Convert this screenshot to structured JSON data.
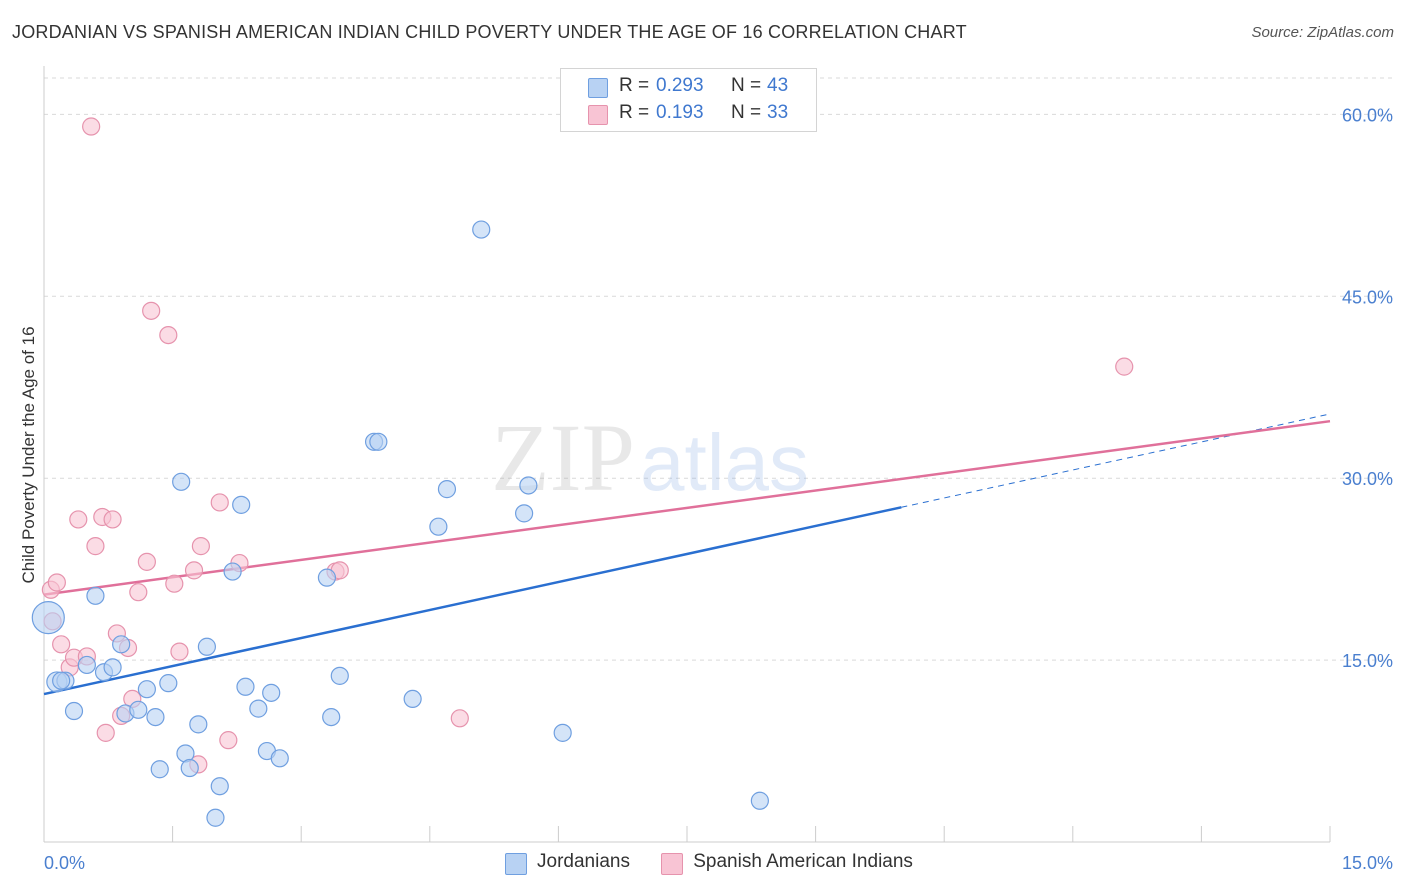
{
  "title": "JORDANIAN VS SPANISH AMERICAN INDIAN CHILD POVERTY UNDER THE AGE OF 16 CORRELATION CHART",
  "source": "Source: ZipAtlas.com",
  "watermark": {
    "zip": "ZIP",
    "atlas": "atlas"
  },
  "legend": {
    "rows": [
      {
        "r_label": "R =",
        "r_value": "0.293",
        "n_label": "N =",
        "n_value": "43"
      },
      {
        "r_label": "R =",
        "r_value": "0.193",
        "n_label": "N =",
        "n_value": "33"
      }
    ]
  },
  "bottom_legend": [
    "Jordanians",
    "Spanish American Indians"
  ],
  "colors": {
    "jordanians_fill": "#b8d2f3",
    "jordanians_stroke": "#6f9fe0",
    "jordanians_line": "#2a6fd0",
    "spanish_fill": "#f8c4d4",
    "spanish_stroke": "#e693ad",
    "spanish_line": "#e0709a",
    "tick_label": "#4a7fcf",
    "grid": "#d9d9d9"
  },
  "chart_data": {
    "type": "scatter",
    "title": "JORDANIAN VS SPANISH AMERICAN INDIAN CHILD POVERTY UNDER THE AGE OF 16 CORRELATION CHART",
    "xlabel": "",
    "ylabel": "Child Poverty Under the Age of 16",
    "xlim": [
      0,
      15
    ],
    "ylim": [
      0,
      63
    ],
    "x_tick_labels": [
      "0.0%",
      "15.0%"
    ],
    "y_ticks": [
      15,
      30,
      45,
      60
    ],
    "y_tick_labels": [
      "15.0%",
      "30.0%",
      "45.0%",
      "60.0%"
    ],
    "grid": "horizontal dashed",
    "legend_position": "top-center",
    "series": [
      {
        "name": "Jordanians",
        "r": 0.293,
        "n": 43,
        "points": [
          [
            0.05,
            18.5
          ],
          [
            0.15,
            13.2
          ],
          [
            0.25,
            13.3
          ],
          [
            0.35,
            10.8
          ],
          [
            0.5,
            14.6
          ],
          [
            0.6,
            20.3
          ],
          [
            0.7,
            14.0
          ],
          [
            0.8,
            14.4
          ],
          [
            0.9,
            16.3
          ],
          [
            0.95,
            10.6
          ],
          [
            1.1,
            10.9
          ],
          [
            1.2,
            12.6
          ],
          [
            1.3,
            10.3
          ],
          [
            1.35,
            6.0
          ],
          [
            1.45,
            13.1
          ],
          [
            1.6,
            29.7
          ],
          [
            1.65,
            7.3
          ],
          [
            1.7,
            6.1
          ],
          [
            1.8,
            9.7
          ],
          [
            1.9,
            16.1
          ],
          [
            2.05,
            4.6
          ],
          [
            2.0,
            2.0
          ],
          [
            2.2,
            22.3
          ],
          [
            2.3,
            27.8
          ],
          [
            2.35,
            12.8
          ],
          [
            2.5,
            11.0
          ],
          [
            2.6,
            7.5
          ],
          [
            2.65,
            12.3
          ],
          [
            2.75,
            6.9
          ],
          [
            3.3,
            21.8
          ],
          [
            3.35,
            10.3
          ],
          [
            3.45,
            13.7
          ],
          [
            3.85,
            33.0
          ],
          [
            3.9,
            33.0
          ],
          [
            4.3,
            11.8
          ],
          [
            4.6,
            26.0
          ],
          [
            4.7,
            29.1
          ],
          [
            5.1,
            50.5
          ],
          [
            5.6,
            27.1
          ],
          [
            5.65,
            29.4
          ],
          [
            6.05,
            9.0
          ],
          [
            8.35,
            3.4
          ],
          [
            0.2,
            13.3
          ]
        ],
        "trendline": {
          "x": [
            0,
            10
          ],
          "y": [
            12.2,
            27.6
          ],
          "dashed_to": [
            15,
            35.3
          ]
        }
      },
      {
        "name": "Spanish American Indians",
        "r": 0.193,
        "n": 33,
        "points": [
          [
            0.08,
            20.8
          ],
          [
            0.1,
            18.2
          ],
          [
            0.15,
            21.4
          ],
          [
            0.2,
            16.3
          ],
          [
            0.3,
            14.4
          ],
          [
            0.35,
            15.2
          ],
          [
            0.4,
            26.6
          ],
          [
            0.5,
            15.3
          ],
          [
            0.55,
            59.0
          ],
          [
            0.6,
            24.4
          ],
          [
            0.68,
            26.8
          ],
          [
            0.72,
            9.0
          ],
          [
            0.8,
            26.6
          ],
          [
            0.85,
            17.2
          ],
          [
            0.9,
            10.4
          ],
          [
            0.98,
            16.0
          ],
          [
            1.03,
            11.8
          ],
          [
            1.1,
            20.6
          ],
          [
            1.2,
            23.1
          ],
          [
            1.25,
            43.8
          ],
          [
            1.45,
            41.8
          ],
          [
            1.52,
            21.3
          ],
          [
            1.58,
            15.7
          ],
          [
            1.75,
            22.4
          ],
          [
            1.83,
            24.4
          ],
          [
            1.8,
            6.4
          ],
          [
            2.05,
            28.0
          ],
          [
            2.15,
            8.4
          ],
          [
            2.28,
            23.0
          ],
          [
            3.4,
            22.3
          ],
          [
            3.45,
            22.4
          ],
          [
            4.85,
            10.2
          ],
          [
            12.6,
            39.2
          ]
        ],
        "trendline": {
          "x": [
            0,
            15
          ],
          "y": [
            20.4,
            34.7
          ]
        }
      }
    ]
  }
}
